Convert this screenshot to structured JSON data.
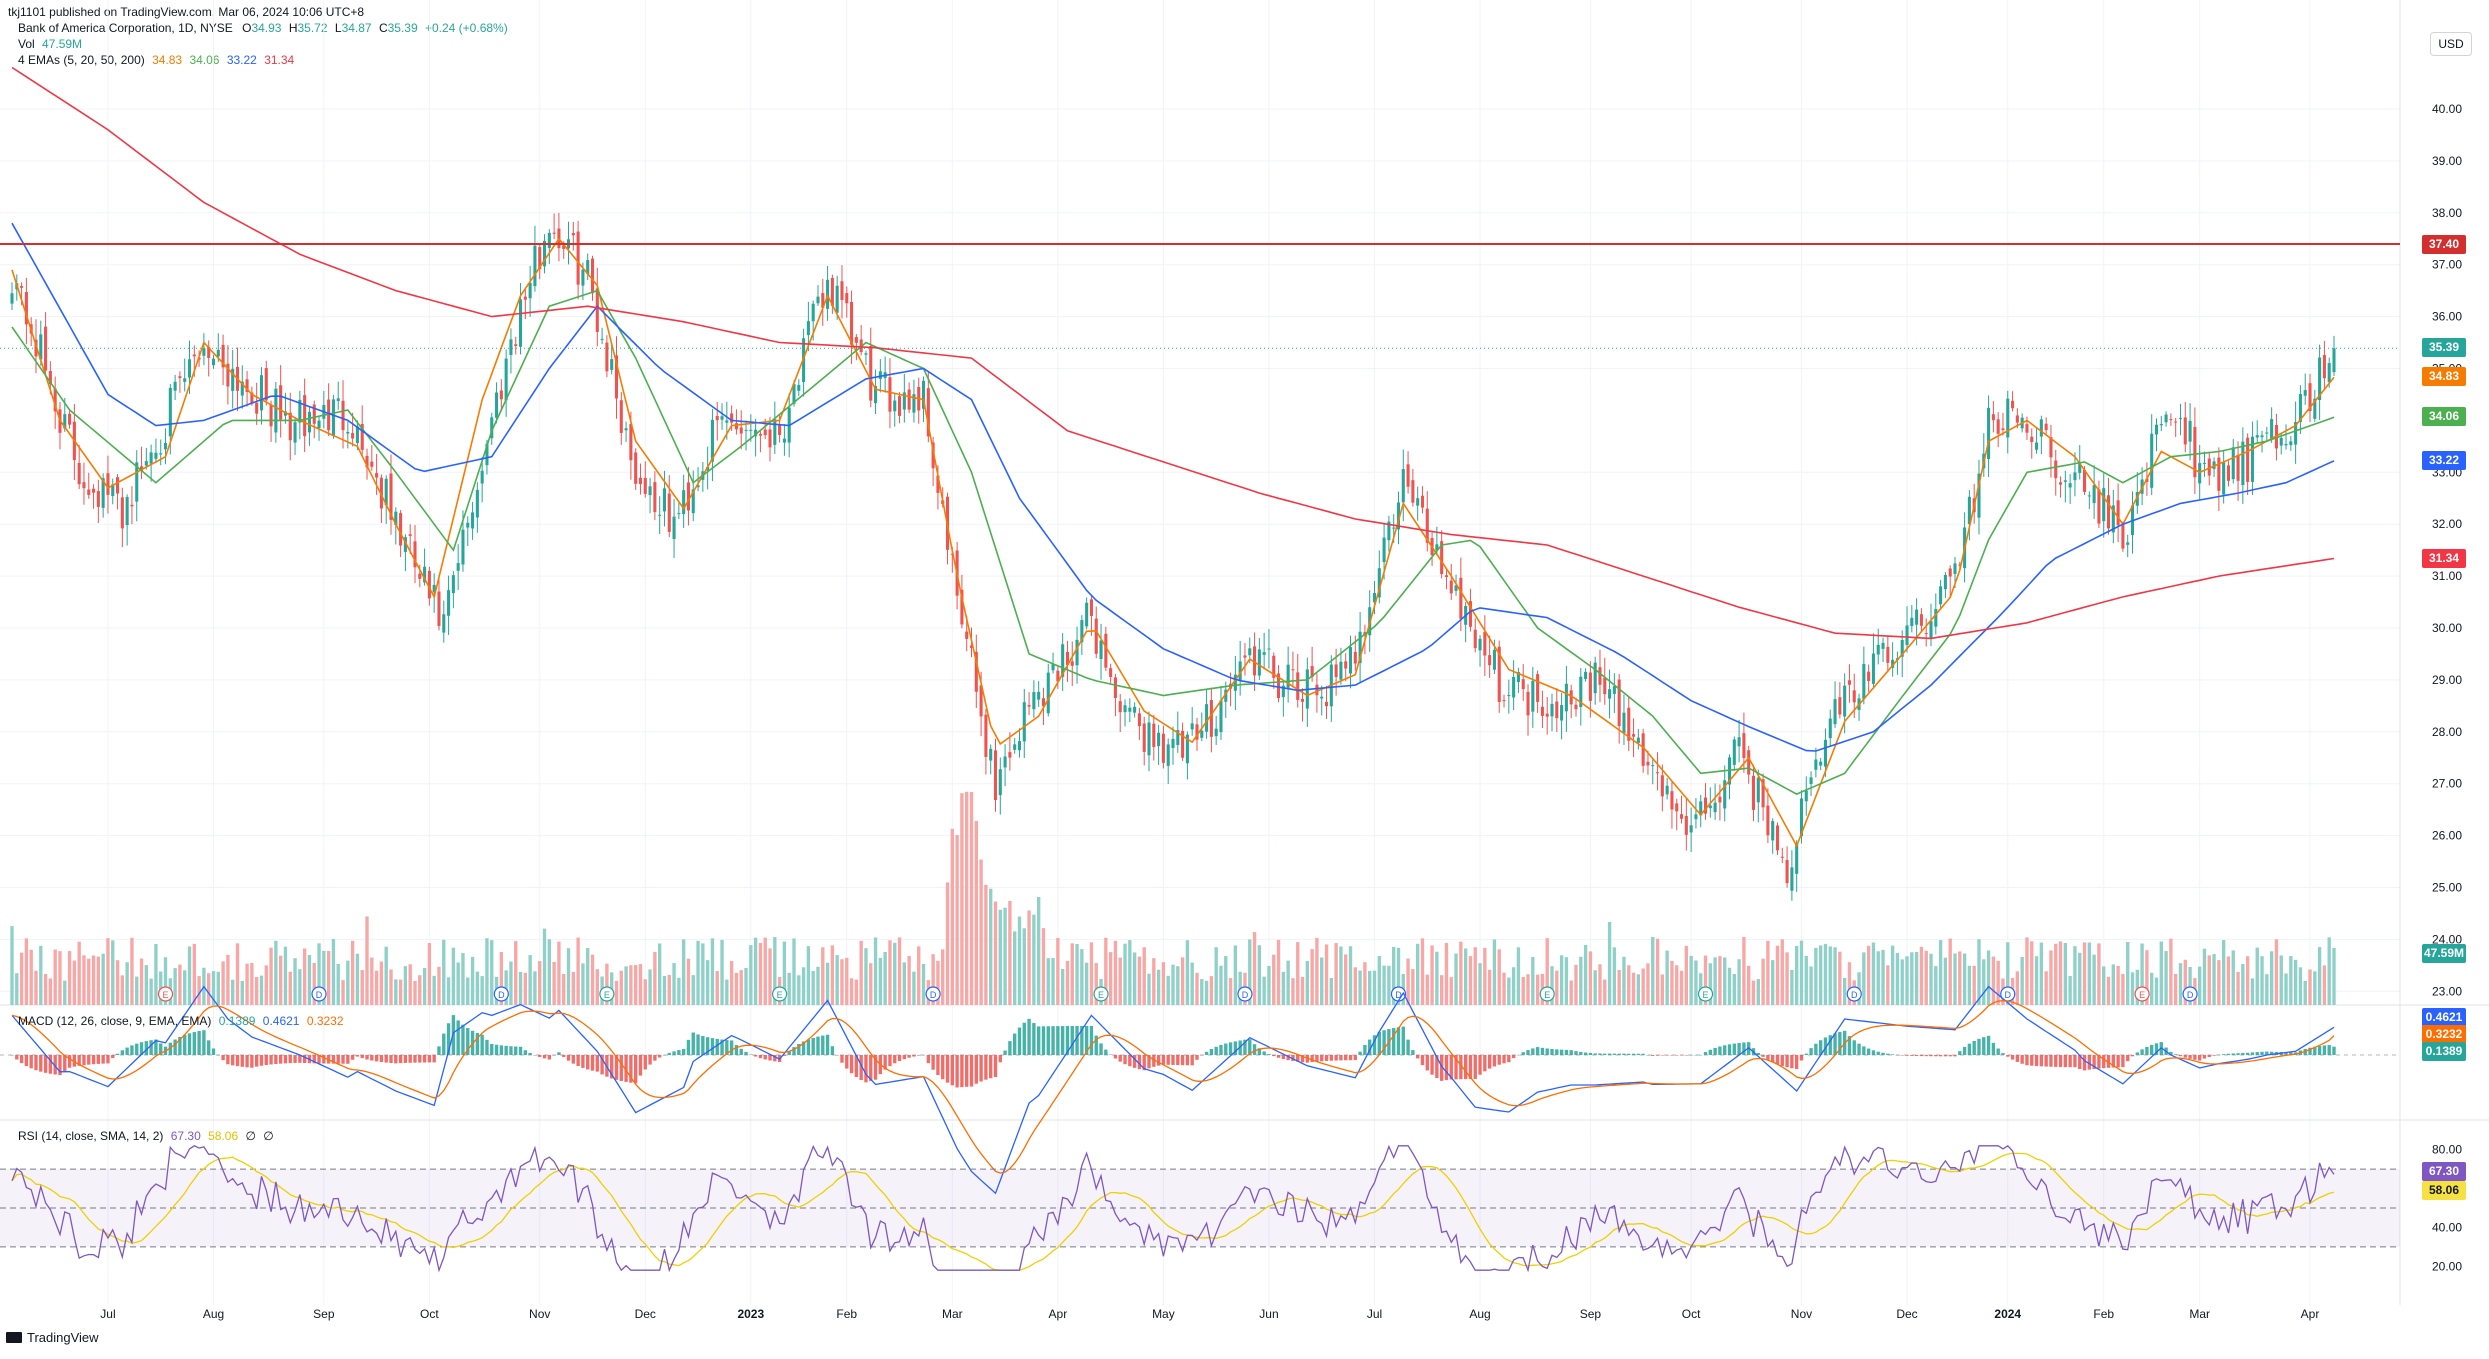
{
  "header": {
    "publish_line": "tkj1101 published on TradingView.com, Mar 06, 2024 10:06 UTC+8",
    "symbol": "Bank of America Corporation, 1D, NYSE",
    "ohlc": {
      "o_label": "O",
      "o": "34.93",
      "h_label": "H",
      "h": "35.72",
      "l_label": "L",
      "l": "34.87",
      "c_label": "C",
      "c": "35.39",
      "change": "+0.24 (+0.68%)"
    },
    "vol_label": "Vol",
    "vol_value": "47.59M",
    "ema_label": "4 EMAs (5, 20, 50, 200)",
    "ema_values": [
      "34.83",
      "34.06",
      "33.22",
      "31.34"
    ]
  },
  "currency": "USD",
  "price_badges": {
    "resistance": "37.40",
    "last": "35.39",
    "ema5": "34.83",
    "ema20": "34.06",
    "ema50": "33.22",
    "ema200": "31.34",
    "volume": "47.59M"
  },
  "macd": {
    "label": "MACD (12, 26, close, 9, EMA, EMA)",
    "values": [
      "0.1389",
      "0.4621",
      "0.3232"
    ]
  },
  "rsi": {
    "label": "RSI (14, close, SMA, 14, 2)",
    "values": [
      "67.30",
      "58.06",
      "∅",
      "∅"
    ]
  },
  "colors": {
    "up": "#26a69a",
    "down": "#ef5350",
    "ema5": "#f57c00",
    "ema20": "#4caf50",
    "ema50": "#2962ff",
    "ema200": "#f23645",
    "resistance": "#d32f2f",
    "macd": "#2962ff",
    "signal": "#ff6d00",
    "rsi": "#7e57c2",
    "rsi_ma": "#f0d000"
  },
  "events": [
    "E",
    "D",
    "D",
    "E",
    "E",
    "D",
    "E",
    "D",
    "D",
    "E",
    "E",
    "D",
    "D",
    "E",
    "D"
  ],
  "footer_logo": "TradingView",
  "chart_data": {
    "type": "candlestick",
    "symbol": "BAC",
    "interval": "1D",
    "price_ticks": [
      "40.00",
      "39.00",
      "38.00",
      "37.00",
      "36.00",
      "35.00",
      "33.00",
      "32.00",
      "31.00",
      "30.00",
      "29.00",
      "28.00",
      "27.00",
      "26.00",
      "25.00",
      "24.00",
      "23.00"
    ],
    "x_labels": [
      "Jul",
      "Aug",
      "Sep",
      "Oct",
      "Nov",
      "Dec",
      "2023",
      "Feb",
      "Mar",
      "Apr",
      "May",
      "Jun",
      "Jul",
      "Aug",
      "Sep",
      "Oct",
      "Nov",
      "Dec",
      "2024",
      "Feb",
      "Mar",
      "Apr"
    ],
    "resistance_level": 37.4,
    "close_anchors": [
      [
        0,
        36.9
      ],
      [
        14,
        33.0
      ],
      [
        23,
        32.3
      ],
      [
        40,
        35.5
      ],
      [
        58,
        33.9
      ],
      [
        70,
        34.2
      ],
      [
        80,
        32.0
      ],
      [
        90,
        30.0
      ],
      [
        104,
        35.6
      ],
      [
        112,
        37.8
      ],
      [
        120,
        36.8
      ],
      [
        130,
        33.0
      ],
      [
        138,
        32.0
      ],
      [
        148,
        34.0
      ],
      [
        160,
        33.8
      ],
      [
        170,
        36.7
      ],
      [
        180,
        34.5
      ],
      [
        190,
        34.5
      ],
      [
        196,
        31.0
      ],
      [
        205,
        27.0
      ],
      [
        212,
        28.5
      ],
      [
        225,
        30.2
      ],
      [
        232,
        28.2
      ],
      [
        245,
        27.6
      ],
      [
        258,
        29.5
      ],
      [
        268,
        28.7
      ],
      [
        278,
        29.0
      ],
      [
        290,
        32.8
      ],
      [
        300,
        30.9
      ],
      [
        310,
        29.0
      ],
      [
        320,
        28.6
      ],
      [
        330,
        29.0
      ],
      [
        340,
        27.6
      ],
      [
        350,
        26.0
      ],
      [
        360,
        27.6
      ],
      [
        370,
        25.4
      ],
      [
        380,
        28.5
      ],
      [
        395,
        29.8
      ],
      [
        405,
        31.0
      ],
      [
        412,
        33.9
      ],
      [
        420,
        34.1
      ],
      [
        427,
        33.2
      ],
      [
        435,
        32.4
      ],
      [
        440,
        31.8
      ],
      [
        446,
        33.4
      ],
      [
        452,
        34.3
      ],
      [
        456,
        32.8
      ],
      [
        466,
        33.2
      ],
      [
        476,
        34.0
      ],
      [
        484,
        35.39
      ]
    ],
    "ema_series": {
      "ema5": [
        [
          0,
          36.9
        ],
        [
          10,
          34.0
        ],
        [
          20,
          32.7
        ],
        [
          32,
          33.3
        ],
        [
          40,
          35.5
        ],
        [
          50,
          34.5
        ],
        [
          60,
          34.0
        ],
        [
          72,
          33.5
        ],
        [
          80,
          32.0
        ],
        [
          88,
          30.6
        ],
        [
          98,
          34.4
        ],
        [
          106,
          36.4
        ],
        [
          114,
          37.5
        ],
        [
          122,
          36.6
        ],
        [
          130,
          33.6
        ],
        [
          140,
          32.3
        ],
        [
          150,
          33.9
        ],
        [
          160,
          34.0
        ],
        [
          170,
          36.4
        ],
        [
          180,
          34.6
        ],
        [
          190,
          34.4
        ],
        [
          197,
          31.0
        ],
        [
          205,
          27.7
        ],
        [
          214,
          28.3
        ],
        [
          225,
          30.1
        ],
        [
          236,
          28.4
        ],
        [
          246,
          27.8
        ],
        [
          258,
          29.4
        ],
        [
          270,
          28.7
        ],
        [
          280,
          29.1
        ],
        [
          290,
          32.4
        ],
        [
          300,
          31.0
        ],
        [
          312,
          29.2
        ],
        [
          325,
          28.7
        ],
        [
          340,
          27.7
        ],
        [
          352,
          26.4
        ],
        [
          362,
          27.5
        ],
        [
          372,
          25.8
        ],
        [
          382,
          28.2
        ],
        [
          395,
          29.6
        ],
        [
          405,
          30.7
        ],
        [
          412,
          33.6
        ],
        [
          420,
          34.0
        ],
        [
          430,
          33.3
        ],
        [
          440,
          32.0
        ],
        [
          448,
          33.4
        ],
        [
          456,
          33.0
        ],
        [
          466,
          33.4
        ],
        [
          476,
          33.9
        ],
        [
          484,
          34.83
        ]
      ],
      "ema20": [
        [
          0,
          35.8
        ],
        [
          12,
          34.2
        ],
        [
          30,
          32.8
        ],
        [
          45,
          34.0
        ],
        [
          60,
          34.0
        ],
        [
          70,
          34.2
        ],
        [
          80,
          33.0
        ],
        [
          92,
          31.5
        ],
        [
          100,
          33.8
        ],
        [
          112,
          36.2
        ],
        [
          122,
          36.5
        ],
        [
          130,
          35.2
        ],
        [
          142,
          32.8
        ],
        [
          152,
          33.5
        ],
        [
          165,
          34.5
        ],
        [
          178,
          35.5
        ],
        [
          190,
          35.0
        ],
        [
          200,
          33.0
        ],
        [
          212,
          29.5
        ],
        [
          225,
          29.0
        ],
        [
          240,
          28.7
        ],
        [
          255,
          28.9
        ],
        [
          270,
          29.0
        ],
        [
          285,
          30.1
        ],
        [
          298,
          31.6
        ],
        [
          305,
          31.7
        ],
        [
          318,
          30.0
        ],
        [
          330,
          29.2
        ],
        [
          342,
          28.3
        ],
        [
          352,
          27.2
        ],
        [
          362,
          27.3
        ],
        [
          372,
          26.8
        ],
        [
          382,
          27.2
        ],
        [
          395,
          28.8
        ],
        [
          405,
          30.0
        ],
        [
          412,
          31.7
        ],
        [
          420,
          33.0
        ],
        [
          432,
          33.2
        ],
        [
          440,
          32.8
        ],
        [
          450,
          33.3
        ],
        [
          460,
          33.4
        ],
        [
          470,
          33.6
        ],
        [
          484,
          34.06
        ]
      ],
      "ema50": [
        [
          0,
          37.8
        ],
        [
          20,
          34.5
        ],
        [
          30,
          33.9
        ],
        [
          40,
          34.0
        ],
        [
          55,
          34.5
        ],
        [
          70,
          34.0
        ],
        [
          85,
          33.0
        ],
        [
          100,
          33.3
        ],
        [
          112,
          35.0
        ],
        [
          122,
          36.2
        ],
        [
          135,
          35.0
        ],
        [
          150,
          34.0
        ],
        [
          162,
          33.9
        ],
        [
          178,
          34.8
        ],
        [
          190,
          35.0
        ],
        [
          200,
          34.4
        ],
        [
          210,
          32.5
        ],
        [
          225,
          30.6
        ],
        [
          240,
          29.6
        ],
        [
          255,
          29.0
        ],
        [
          268,
          28.8
        ],
        [
          280,
          28.9
        ],
        [
          295,
          29.6
        ],
        [
          305,
          30.4
        ],
        [
          320,
          30.2
        ],
        [
          335,
          29.5
        ],
        [
          350,
          28.6
        ],
        [
          362,
          28.1
        ],
        [
          375,
          27.6
        ],
        [
          388,
          28.0
        ],
        [
          400,
          28.9
        ],
        [
          415,
          30.3
        ],
        [
          425,
          31.3
        ],
        [
          440,
          32.0
        ],
        [
          452,
          32.4
        ],
        [
          464,
          32.6
        ],
        [
          474,
          32.8
        ],
        [
          484,
          33.22
        ]
      ],
      "ema200": [
        [
          0,
          40.8
        ],
        [
          20,
          39.6
        ],
        [
          40,
          38.2
        ],
        [
          60,
          37.2
        ],
        [
          80,
          36.5
        ],
        [
          100,
          36.0
        ],
        [
          120,
          36.2
        ],
        [
          140,
          35.9
        ],
        [
          160,
          35.5
        ],
        [
          180,
          35.4
        ],
        [
          200,
          35.2
        ],
        [
          220,
          33.8
        ],
        [
          240,
          33.2
        ],
        [
          260,
          32.6
        ],
        [
          280,
          32.1
        ],
        [
          300,
          31.8
        ],
        [
          320,
          31.6
        ],
        [
          340,
          31.0
        ],
        [
          360,
          30.4
        ],
        [
          380,
          29.9
        ],
        [
          400,
          29.8
        ],
        [
          420,
          30.1
        ],
        [
          440,
          30.6
        ],
        [
          460,
          31.0
        ],
        [
          484,
          31.34
        ]
      ]
    },
    "macd": {
      "range": [
        -0.9,
        0.8
      ],
      "last": {
        "macd": 0.4621,
        "signal": 0.3232,
        "hist": 0.1389
      }
    },
    "rsi": {
      "ticks": [
        "80.00",
        "60.00",
        "40.00",
        "20.00"
      ],
      "range": [
        15,
        85
      ],
      "upper_band": 70,
      "lower_band": 30,
      "last": {
        "rsi": 67.3,
        "ma": 58.06
      }
    },
    "volume": {
      "last_m": 47.59
    }
  }
}
